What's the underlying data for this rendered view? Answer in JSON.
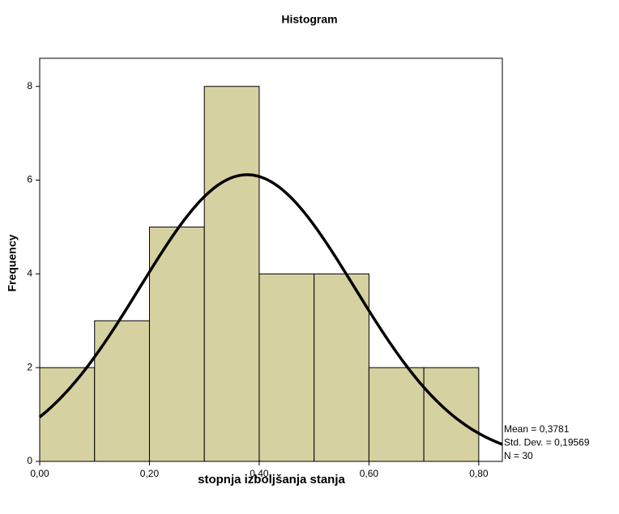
{
  "chart_data": {
    "type": "histogram",
    "title": "Histogram",
    "x_label": "stopnja izboljšanja stanja",
    "y_label": "Frequency",
    "bins": [
      0,
      0.1,
      0.2,
      0.3,
      0.4,
      0.5,
      0.6,
      0.7,
      0.8
    ],
    "counts": [
      2,
      3,
      5,
      8,
      4,
      4,
      2,
      2
    ],
    "color": "#d6d1a0",
    "xlim": [
      0,
      0.843
    ],
    "ylim": [
      0,
      8.6
    ],
    "xticks": [
      {
        "value": 0,
        "label": "0,00"
      },
      {
        "value": 0.2,
        "label": "0,20"
      },
      {
        "value": 0.4,
        "label": "0,40"
      },
      {
        "value": 0.6,
        "label": "0,60"
      },
      {
        "value": 0.8,
        "label": "0,80"
      }
    ],
    "yticks": [
      0,
      2,
      4,
      6,
      8
    ],
    "normal_curve": {
      "mean": {
        "value": 0.3781,
        "label": "Mean = 0,3781"
      },
      "std_dev": {
        "value": 0.19569,
        "label": "Std. Dev. = 0,19569"
      },
      "n": {
        "value": 30,
        "label": "N = 30"
      }
    }
  }
}
